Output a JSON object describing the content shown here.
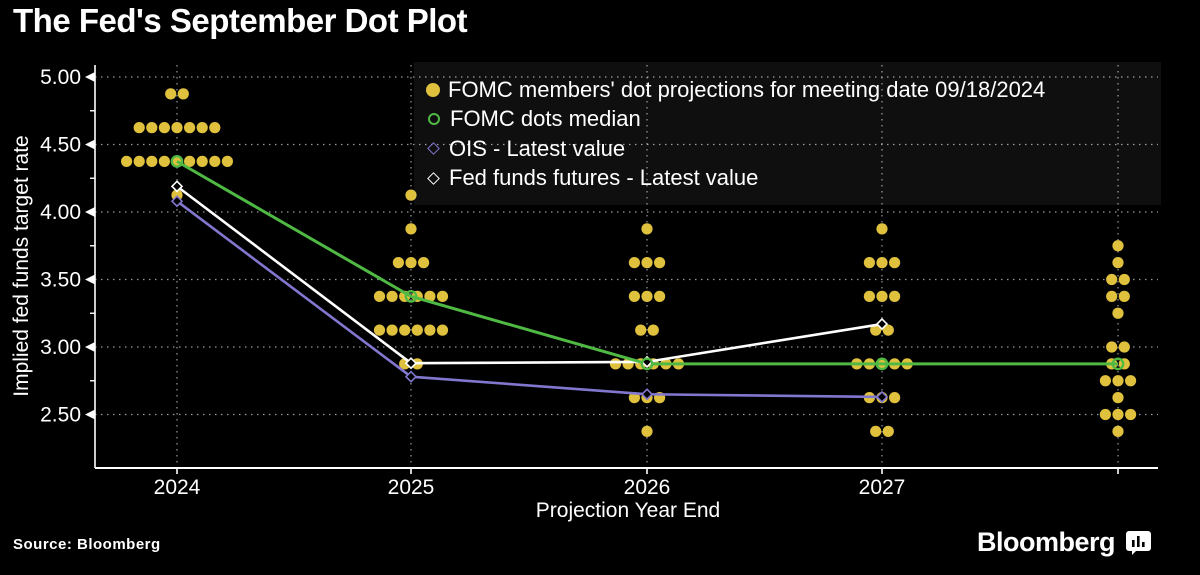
{
  "header": {
    "title": "The Fed's September Dot Plot"
  },
  "colors": {
    "background": "#000000",
    "dots": "#dfc13d",
    "median": "#4fb944",
    "ois": "#8277cf",
    "futures": "#ffffff",
    "grid": "#c8ccd4",
    "axis": "#ffffff"
  },
  "chart_data": {
    "type": "scatter",
    "title": "The Fed's September Dot Plot",
    "xlabel": "Projection Year End",
    "ylabel": "Implied fed funds target rate",
    "ylim": [
      2.25,
      5.05
    ],
    "grid": "dotted",
    "legend_position": "top-right",
    "y_axis": {
      "label": "Implied fed funds target rate",
      "ticks": [
        "5.00",
        "4.50",
        "4.00",
        "3.50",
        "3.00",
        "2.50"
      ],
      "tick_values": [
        5.0,
        4.5,
        4.0,
        3.5,
        3.0,
        2.5
      ],
      "minor_tick_values": [
        4.75,
        4.25,
        3.75,
        3.25,
        2.75
      ]
    },
    "x_axis": {
      "label": "Projection Year End",
      "ticks": [
        "2024",
        "2025",
        "2026",
        "2027",
        ""
      ]
    },
    "dots": {
      "name": "FOMC members' dot projections for meeting date 09/18/2024",
      "columns": [
        {
          "label": "2024",
          "levels": [
            [
              4.875,
              2
            ],
            [
              4.625,
              7
            ],
            [
              4.375,
              9
            ],
            [
              4.125,
              1
            ]
          ]
        },
        {
          "label": "2025",
          "levels": [
            [
              4.125,
              1
            ],
            [
              3.875,
              1
            ],
            [
              3.625,
              3
            ],
            [
              3.375,
              6
            ],
            [
              3.125,
              6
            ],
            [
              2.875,
              2
            ]
          ]
        },
        {
          "label": "2026",
          "levels": [
            [
              3.875,
              1
            ],
            [
              3.625,
              3
            ],
            [
              3.375,
              3
            ],
            [
              3.125,
              2
            ],
            [
              2.875,
              6
            ],
            [
              2.625,
              3
            ],
            [
              2.375,
              1
            ]
          ]
        },
        {
          "label": "2027",
          "levels": [
            [
              3.875,
              1
            ],
            [
              3.625,
              3
            ],
            [
              3.375,
              3
            ],
            [
              3.125,
              2
            ],
            [
              2.875,
              5
            ],
            [
              2.625,
              3
            ],
            [
              2.375,
              2
            ]
          ]
        },
        {
          "label": "",
          "levels": [
            [
              3.75,
              1
            ],
            [
              3.625,
              1
            ],
            [
              3.5,
              2
            ],
            [
              3.375,
              2
            ],
            [
              3.25,
              1
            ],
            [
              3.0,
              2
            ],
            [
              2.875,
              2
            ],
            [
              2.75,
              3
            ],
            [
              2.625,
              1
            ],
            [
              2.5,
              3
            ],
            [
              2.375,
              1
            ]
          ]
        }
      ]
    },
    "series": [
      {
        "name": "FOMC dots median",
        "marker": "open-circle",
        "columns": [
          0,
          1,
          2,
          3,
          4
        ],
        "values": [
          4.375,
          3.375,
          2.875,
          2.875,
          2.875
        ]
      },
      {
        "name": "OIS - Latest value",
        "marker": "open-diamond",
        "columns": [
          0,
          1,
          2,
          3
        ],
        "values": [
          4.08,
          2.78,
          2.65,
          2.63
        ]
      },
      {
        "name": "Fed funds futures - Latest value",
        "marker": "open-diamond",
        "columns": [
          0,
          1,
          2,
          3
        ],
        "values": [
          4.19,
          2.88,
          2.89,
          3.17
        ]
      }
    ]
  },
  "legend": {
    "items": [
      {
        "label": "FOMC members' dot projections for meeting date 09/18/2024"
      },
      {
        "label": "FOMC dots median"
      },
      {
        "label": "OIS - Latest value"
      },
      {
        "label": "Fed funds futures - Latest value"
      }
    ]
  },
  "footer": {
    "source": "Source: Bloomberg",
    "brand": "Bloomberg"
  }
}
